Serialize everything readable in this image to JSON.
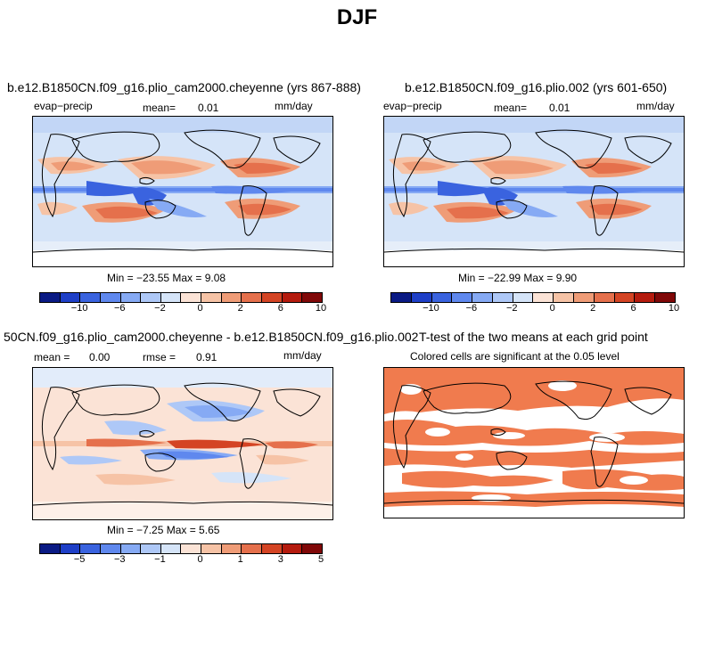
{
  "title": "DJF",
  "panels": {
    "p1": {
      "title": "b.e12.B1850CN.f09_g16.plio_cam2000.cheyenne (yrs 867-888)",
      "var_label": "evap−precip",
      "mean_label": "mean=",
      "mean_value": "0.01",
      "units": "mm/day",
      "minmax": "Min = −23.55  Max =    9.08"
    },
    "p2": {
      "title": "b.e12.B1850CN.f09_g16.plio.002 (yrs 601-650)",
      "var_label": "evap−precip",
      "mean_label": "mean=",
      "mean_value": "0.01",
      "units": "mm/day",
      "minmax": "Min = −22.99  Max =    9.90"
    },
    "p3": {
      "title": "50CN.f09_g16.plio_cam2000.cheyenne - b.e12.B1850CN.f09_g16.plio.002",
      "mean_label": "mean =",
      "mean_value": "0.00",
      "rmse_label": "rmse =",
      "rmse_value": "0.91",
      "units": "mm/day",
      "minmax": "Min =  −7.25  Max =    5.65"
    },
    "p4": {
      "title": "T-test of the two means at each grid point",
      "subtitle": "Colored cells are significant at the 0.05 level"
    }
  },
  "colorbar_top": {
    "colors": [
      "#0a1a84",
      "#1e3fc7",
      "#3a63df",
      "#5f88ee",
      "#86aaf4",
      "#aec8f7",
      "#d5e4f8",
      "#fbe3d6",
      "#f6c3a6",
      "#ef9c77",
      "#e5704c",
      "#d44424",
      "#b51b0e",
      "#800808"
    ],
    "tick_labels": [
      "−10",
      "−6",
      "−2",
      "0",
      "2",
      "6",
      "10"
    ]
  },
  "colorbar_diff": {
    "colors": [
      "#0a1a84",
      "#1e3fc7",
      "#3a63df",
      "#5f88ee",
      "#86aaf4",
      "#aec8f7",
      "#d5e4f8",
      "#fbe3d6",
      "#f6c3a6",
      "#ef9c77",
      "#e5704c",
      "#d44424",
      "#b51b0e",
      "#800808"
    ],
    "tick_labels": [
      "−5",
      "−3",
      "−1",
      "0",
      "1",
      "3",
      "5"
    ]
  },
  "colors": {
    "significant": "#f07b4e",
    "land_outline": "#000000"
  }
}
